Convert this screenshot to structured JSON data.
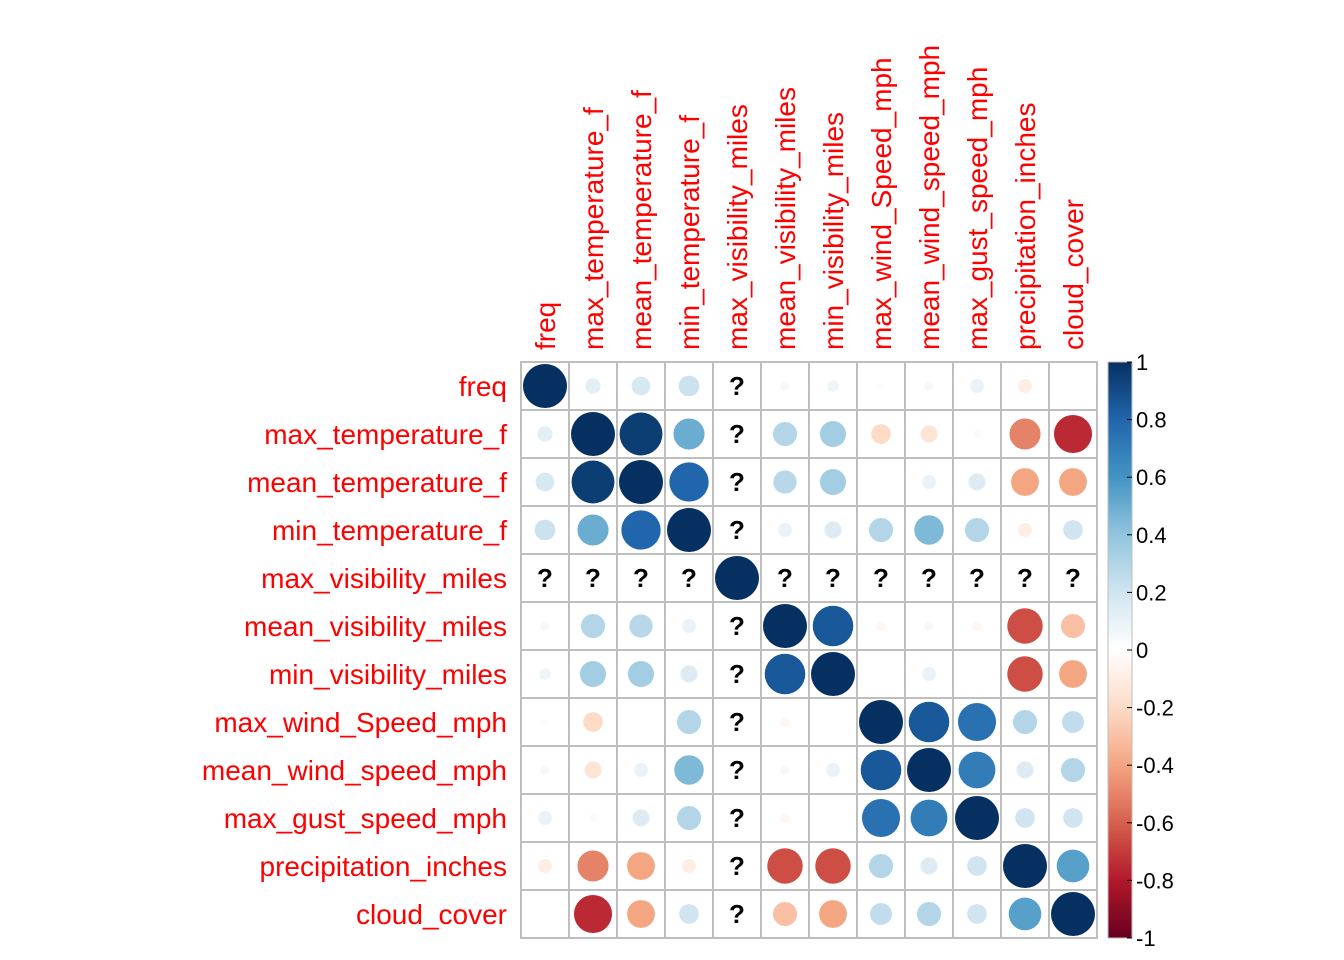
{
  "chart_data": {
    "type": "heatmap",
    "variables": [
      "freq",
      "max_temperature_f",
      "mean_temperature_f",
      "min_temperature_f",
      "max_visibility_miles",
      "mean_visibility_miles",
      "min_visibility_miles",
      "max_wind_Speed_mph",
      "mean_wind_speed_mph",
      "max_gust_speed_mph",
      "precipitation_inches",
      "cloud_cover"
    ],
    "matrix": [
      [
        1,
        0.12,
        0.18,
        0.22,
        null,
        0.05,
        0.07,
        0.02,
        0.05,
        0.1,
        -0.1,
        0.0
      ],
      [
        0.12,
        1,
        0.95,
        0.5,
        null,
        0.3,
        0.35,
        -0.2,
        -0.15,
        0.03,
        -0.5,
        -0.75
      ],
      [
        0.18,
        0.95,
        1,
        0.8,
        null,
        0.28,
        0.35,
        0.0,
        0.1,
        0.15,
        -0.4,
        -0.4
      ],
      [
        0.22,
        0.5,
        0.8,
        1,
        null,
        0.1,
        0.15,
        0.3,
        0.45,
        0.3,
        -0.1,
        0.2
      ],
      [
        null,
        null,
        null,
        null,
        1,
        null,
        null,
        null,
        null,
        null,
        null,
        null
      ],
      [
        0.05,
        0.3,
        0.28,
        0.1,
        null,
        1,
        0.85,
        -0.05,
        0.05,
        -0.05,
        -0.65,
        -0.3
      ],
      [
        0.07,
        0.35,
        0.35,
        0.15,
        null,
        0.85,
        1,
        0.0,
        0.1,
        0.0,
        -0.65,
        -0.4
      ],
      [
        0.02,
        -0.2,
        0.0,
        0.3,
        null,
        -0.05,
        0.0,
        1,
        0.85,
        0.75,
        0.3,
        0.25
      ],
      [
        0.05,
        -0.15,
        0.1,
        0.45,
        null,
        0.05,
        0.1,
        0.85,
        1,
        0.7,
        0.15,
        0.3
      ],
      [
        0.1,
        0.03,
        0.15,
        0.3,
        null,
        -0.05,
        0.0,
        0.75,
        0.7,
        1,
        0.2,
        0.2
      ],
      [
        -0.1,
        -0.5,
        -0.4,
        -0.1,
        null,
        -0.65,
        -0.65,
        0.3,
        0.15,
        0.2,
        1,
        0.55
      ],
      [
        0.0,
        -0.75,
        -0.4,
        0.2,
        null,
        -0.3,
        -0.4,
        0.25,
        0.3,
        0.2,
        0.55,
        1
      ]
    ],
    "missing_symbol": "?",
    "colorbar_ticks": [
      "1",
      "0.8",
      "0.6",
      "0.4",
      "0.2",
      "0",
      "-0.2",
      "-0.4",
      "-0.6",
      "-0.8",
      "-1"
    ],
    "colorbar_range": [
      -1,
      1
    ],
    "label_color": "#ff0000",
    "grid_color": "#bebebe",
    "palette": [
      "#67001f",
      "#b2182b",
      "#d6604d",
      "#f4a582",
      "#fddbc7",
      "#ffffff",
      "#d1e5f0",
      "#92c5de",
      "#4393c3",
      "#2166ac",
      "#053061"
    ]
  }
}
